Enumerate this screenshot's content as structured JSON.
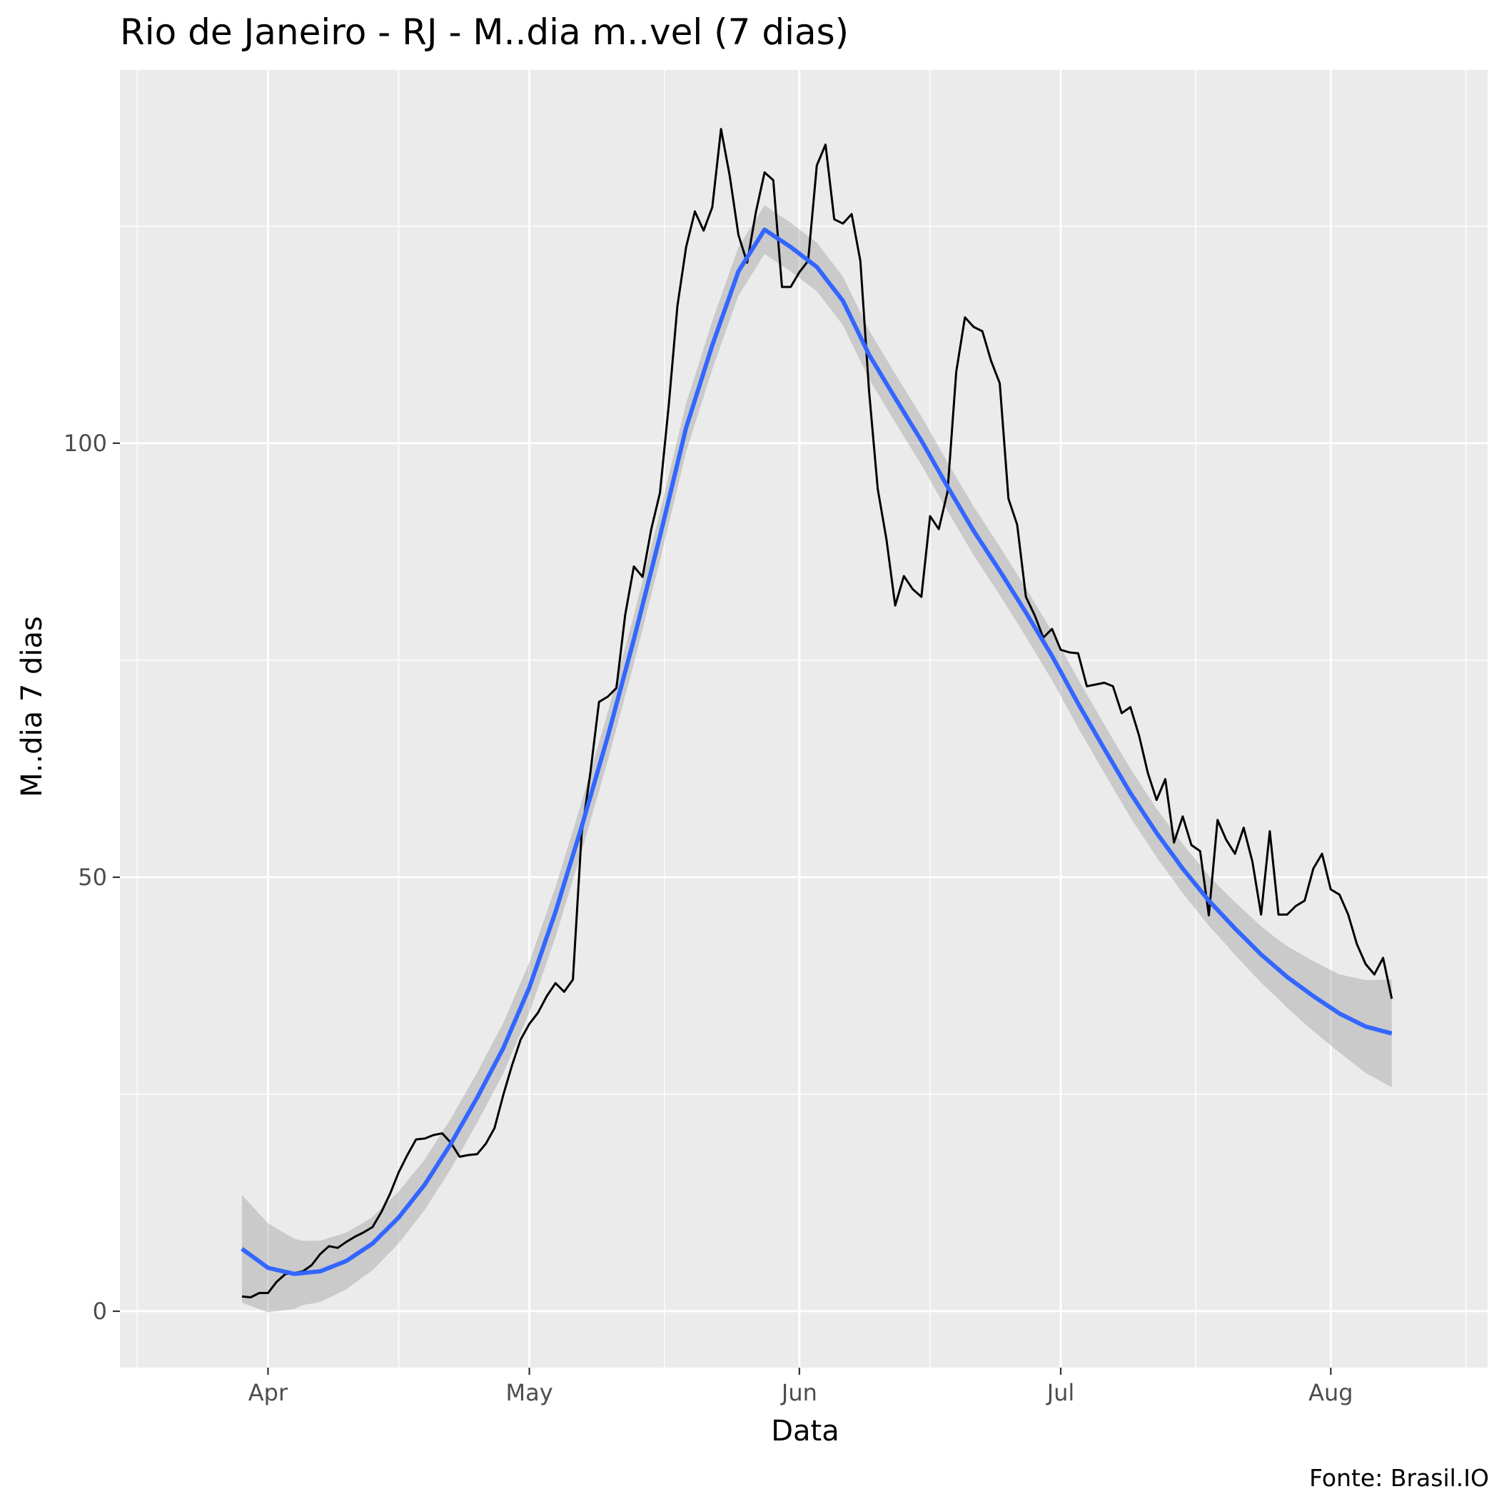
{
  "chart_data": {
    "type": "line",
    "title": "Rio de Janeiro - RJ - M..dia m..vel (7 dias)",
    "xlabel": "Data",
    "ylabel": "M..dia 7 dias",
    "caption": "Fonte: Brasil.IO",
    "x_ticks": [
      {
        "date": "2020-04-01",
        "label": "Apr"
      },
      {
        "date": "2020-05-01",
        "label": "May"
      },
      {
        "date": "2020-06-01",
        "label": "Jun"
      },
      {
        "date": "2020-07-01",
        "label": "Jul"
      },
      {
        "date": "2020-08-01",
        "label": "Aug"
      }
    ],
    "y_ticks": [
      0,
      50,
      100
    ],
    "xlim": [
      "2020-03-15",
      "2020-08-19"
    ],
    "ylim": [
      -6.5,
      143
    ],
    "grid": true,
    "colors": {
      "panel": "#ebebeb",
      "grid": "#ffffff",
      "series": "#000000",
      "smooth": "#3366ff",
      "ribbon": "#999999"
    },
    "series": [
      {
        "values": [
          [
            "2020-03-29",
            1.7
          ],
          [
            "2020-03-30",
            1.6
          ],
          [
            "2020-03-31",
            2.1
          ],
          [
            "2020-04-01",
            2.1
          ],
          [
            "2020-04-02",
            3.4
          ],
          [
            "2020-04-03",
            4.3
          ],
          [
            "2020-04-04",
            4.4
          ],
          [
            "2020-04-05",
            4.6
          ],
          [
            "2020-04-06",
            5.3
          ],
          [
            "2020-04-07",
            6.6
          ],
          [
            "2020-04-08",
            7.5
          ],
          [
            "2020-04-09",
            7.3
          ],
          [
            "2020-04-10",
            8.0
          ],
          [
            "2020-04-11",
            8.6
          ],
          [
            "2020-04-12",
            9.1
          ],
          [
            "2020-04-13",
            9.7
          ],
          [
            "2020-04-14",
            11.4
          ],
          [
            "2020-04-15",
            13.5
          ],
          [
            "2020-04-16",
            16.0
          ],
          [
            "2020-04-17",
            18.0
          ],
          [
            "2020-04-18",
            19.8
          ],
          [
            "2020-04-19",
            19.9
          ],
          [
            "2020-04-20",
            20.3
          ],
          [
            "2020-04-21",
            20.5
          ],
          [
            "2020-04-22",
            19.4
          ],
          [
            "2020-04-23",
            17.8
          ],
          [
            "2020-04-24",
            18.0
          ],
          [
            "2020-04-25",
            18.1
          ],
          [
            "2020-04-26",
            19.3
          ],
          [
            "2020-04-27",
            21.1
          ],
          [
            "2020-04-28",
            24.9
          ],
          [
            "2020-04-29",
            28.3
          ],
          [
            "2020-04-30",
            31.3
          ],
          [
            "2020-05-01",
            33.1
          ],
          [
            "2020-05-02",
            34.4
          ],
          [
            "2020-05-03",
            36.3
          ],
          [
            "2020-05-04",
            37.8
          ],
          [
            "2020-05-05",
            36.8
          ],
          [
            "2020-05-06",
            38.2
          ],
          [
            "2020-05-07",
            55.0
          ],
          [
            "2020-05-08",
            62.0
          ],
          [
            "2020-05-09",
            70.2
          ],
          [
            "2020-05-10",
            70.8
          ],
          [
            "2020-05-11",
            71.8
          ],
          [
            "2020-05-12",
            80.2
          ],
          [
            "2020-05-13",
            85.8
          ],
          [
            "2020-05-14",
            84.6
          ],
          [
            "2020-05-15",
            90.1
          ],
          [
            "2020-05-16",
            94.3
          ],
          [
            "2020-05-17",
            104.3
          ],
          [
            "2020-05-18",
            115.8
          ],
          [
            "2020-05-19",
            122.6
          ],
          [
            "2020-05-20",
            126.7
          ],
          [
            "2020-05-21",
            124.5
          ],
          [
            "2020-05-22",
            127.2
          ],
          [
            "2020-05-23",
            136.2
          ],
          [
            "2020-05-24",
            130.8
          ],
          [
            "2020-05-25",
            124.0
          ],
          [
            "2020-05-26",
            120.8
          ],
          [
            "2020-05-27",
            126.6
          ],
          [
            "2020-05-28",
            131.2
          ],
          [
            "2020-05-29",
            130.3
          ],
          [
            "2020-05-30",
            118.0
          ],
          [
            "2020-05-31",
            118.0
          ],
          [
            "2020-06-01",
            119.7
          ],
          [
            "2020-06-02",
            121.0
          ],
          [
            "2020-06-03",
            132.0
          ],
          [
            "2020-06-04",
            134.4
          ],
          [
            "2020-06-05",
            125.8
          ],
          [
            "2020-06-06",
            125.3
          ],
          [
            "2020-06-07",
            126.4
          ],
          [
            "2020-06-08",
            121.0
          ],
          [
            "2020-06-09",
            106.0
          ],
          [
            "2020-06-10",
            94.7
          ],
          [
            "2020-06-11",
            88.9
          ],
          [
            "2020-06-12",
            81.3
          ],
          [
            "2020-06-13",
            84.7
          ],
          [
            "2020-06-14",
            83.2
          ],
          [
            "2020-06-15",
            82.3
          ],
          [
            "2020-06-16",
            91.6
          ],
          [
            "2020-06-17",
            90.1
          ],
          [
            "2020-06-18",
            94.4
          ],
          [
            "2020-06-19",
            108.2
          ],
          [
            "2020-06-20",
            114.5
          ],
          [
            "2020-06-21",
            113.4
          ],
          [
            "2020-06-22",
            112.9
          ],
          [
            "2020-06-23",
            109.5
          ],
          [
            "2020-06-24",
            106.9
          ],
          [
            "2020-06-25",
            93.6
          ],
          [
            "2020-06-26",
            90.6
          ],
          [
            "2020-06-27",
            82.3
          ],
          [
            "2020-06-28",
            80.2
          ],
          [
            "2020-06-29",
            77.6
          ],
          [
            "2020-06-30",
            78.6
          ],
          [
            "2020-07-01",
            76.2
          ],
          [
            "2020-07-02",
            75.9
          ],
          [
            "2020-07-03",
            75.8
          ],
          [
            "2020-07-04",
            72.0
          ],
          [
            "2020-07-05",
            72.2
          ],
          [
            "2020-07-06",
            72.4
          ],
          [
            "2020-07-07",
            72.0
          ],
          [
            "2020-07-08",
            68.9
          ],
          [
            "2020-07-09",
            69.6
          ],
          [
            "2020-07-10",
            66.3
          ],
          [
            "2020-07-11",
            62.0
          ],
          [
            "2020-07-12",
            58.9
          ],
          [
            "2020-07-13",
            61.3
          ],
          [
            "2020-07-14",
            54.0
          ],
          [
            "2020-07-15",
            57.0
          ],
          [
            "2020-07-16",
            53.7
          ],
          [
            "2020-07-17",
            53.0
          ],
          [
            "2020-07-18",
            45.6
          ],
          [
            "2020-07-19",
            56.6
          ],
          [
            "2020-07-20",
            54.3
          ],
          [
            "2020-07-21",
            52.7
          ],
          [
            "2020-07-22",
            55.7
          ],
          [
            "2020-07-23",
            51.8
          ],
          [
            "2020-07-24",
            45.7
          ],
          [
            "2020-07-25",
            55.3
          ],
          [
            "2020-07-26",
            45.7
          ],
          [
            "2020-07-27",
            45.7
          ],
          [
            "2020-07-28",
            46.7
          ],
          [
            "2020-07-29",
            47.3
          ],
          [
            "2020-07-30",
            51.0
          ],
          [
            "2020-07-31",
            52.7
          ],
          [
            "2020-08-01",
            48.6
          ],
          [
            "2020-08-02",
            48.0
          ],
          [
            "2020-08-03",
            45.7
          ],
          [
            "2020-08-04",
            42.3
          ],
          [
            "2020-08-05",
            40.0
          ],
          [
            "2020-08-06",
            38.8
          ],
          [
            "2020-08-07",
            40.7
          ],
          [
            "2020-08-08",
            36.0
          ]
        ]
      }
    ],
    "smooth": {
      "values": [
        [
          "2020-03-29",
          7.2
        ],
        [
          "2020-04-01",
          5.0
        ],
        [
          "2020-04-04",
          4.3
        ],
        [
          "2020-04-07",
          4.6
        ],
        [
          "2020-04-10",
          5.8
        ],
        [
          "2020-04-13",
          7.8
        ],
        [
          "2020-04-16",
          10.8
        ],
        [
          "2020-04-19",
          14.6
        ],
        [
          "2020-04-22",
          19.3
        ],
        [
          "2020-04-25",
          24.6
        ],
        [
          "2020-04-28",
          30.3
        ],
        [
          "2020-05-01",
          37.3
        ],
        [
          "2020-05-04",
          46.0
        ],
        [
          "2020-05-07",
          55.8
        ],
        [
          "2020-05-10",
          66.2
        ],
        [
          "2020-05-13",
          77.4
        ],
        [
          "2020-05-16",
          89.3
        ],
        [
          "2020-05-19",
          101.8
        ],
        [
          "2020-05-22",
          111.3
        ],
        [
          "2020-05-25",
          119.8
        ],
        [
          "2020-05-28",
          124.6
        ],
        [
          "2020-05-31",
          122.6
        ],
        [
          "2020-06-03",
          120.3
        ],
        [
          "2020-06-06",
          116.4
        ],
        [
          "2020-06-09",
          110.2
        ],
        [
          "2020-06-12",
          105.2
        ],
        [
          "2020-06-15",
          100.3
        ],
        [
          "2020-06-18",
          95.0
        ],
        [
          "2020-06-21",
          89.9
        ],
        [
          "2020-06-24",
          85.3
        ],
        [
          "2020-06-27",
          80.5
        ],
        [
          "2020-06-30",
          75.5
        ],
        [
          "2020-07-03",
          70.0
        ],
        [
          "2020-07-06",
          64.8
        ],
        [
          "2020-07-09",
          59.7
        ],
        [
          "2020-07-12",
          55.1
        ],
        [
          "2020-07-15",
          51.0
        ],
        [
          "2020-07-18",
          47.3
        ],
        [
          "2020-07-21",
          44.1
        ],
        [
          "2020-07-24",
          41.1
        ],
        [
          "2020-07-27",
          38.5
        ],
        [
          "2020-07-30",
          36.3
        ],
        [
          "2020-08-02",
          34.3
        ],
        [
          "2020-08-05",
          32.8
        ],
        [
          "2020-08-08",
          32.0
        ]
      ],
      "ribbon_halfwidth": [
        [
          "2020-03-29",
          6.2
        ],
        [
          "2020-04-05",
          3.7
        ],
        [
          "2020-04-12",
          3.1
        ],
        [
          "2020-04-19",
          2.9
        ],
        [
          "2020-04-26",
          2.9
        ],
        [
          "2020-05-03",
          2.9
        ],
        [
          "2020-05-10",
          2.8
        ],
        [
          "2020-05-17",
          2.8
        ],
        [
          "2020-05-24",
          2.8
        ],
        [
          "2020-05-31",
          2.8
        ],
        [
          "2020-06-07",
          2.8
        ],
        [
          "2020-06-14",
          2.8
        ],
        [
          "2020-06-21",
          2.8
        ],
        [
          "2020-06-28",
          2.8
        ],
        [
          "2020-07-05",
          2.8
        ],
        [
          "2020-07-12",
          2.8
        ],
        [
          "2020-07-19",
          2.9
        ],
        [
          "2020-07-26",
          3.4
        ],
        [
          "2020-08-02",
          4.5
        ],
        [
          "2020-08-08",
          6.2
        ]
      ]
    }
  }
}
